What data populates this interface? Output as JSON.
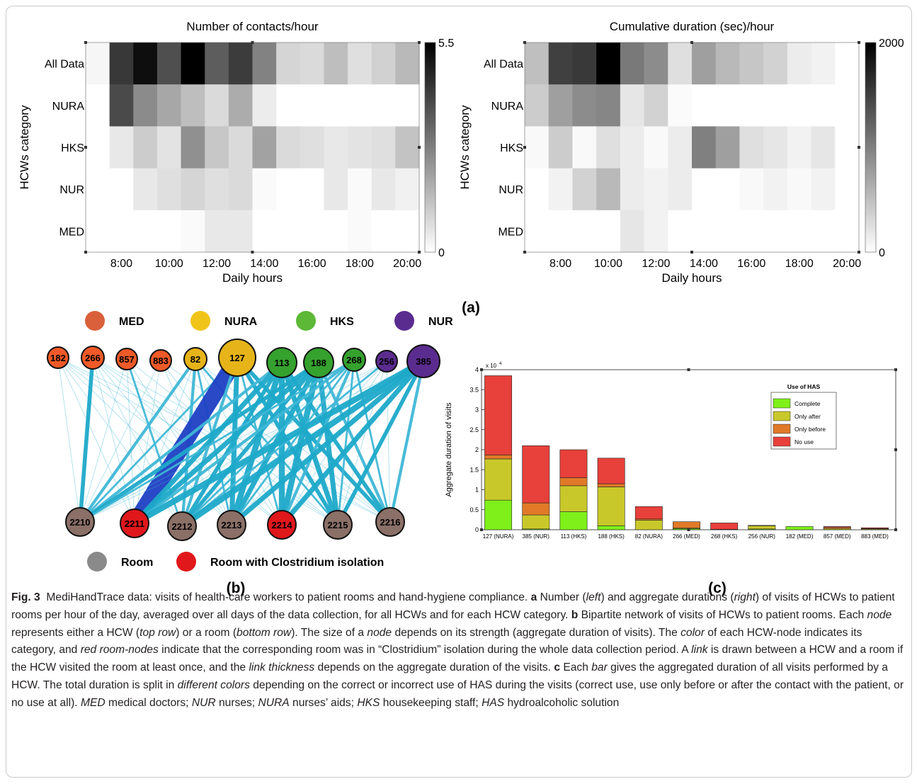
{
  "heatmaps": [
    {
      "title": "Number of contacts/hour",
      "xlabel": "Daily hours",
      "ylabel": "HCWs category",
      "rows": [
        "All Data",
        "NURA",
        "HKS",
        "NUR",
        "MED"
      ],
      "hours": [
        7,
        8,
        9,
        10,
        11,
        12,
        13,
        14,
        15,
        16,
        17,
        18,
        19,
        20
      ],
      "xticks": [
        "8:00",
        "10:00",
        "12:00",
        "14:00",
        "16:00",
        "18:00",
        "20:00"
      ],
      "colorbar": {
        "min": 0,
        "max": 5.5,
        "min_label": "0",
        "max_label": "5.5"
      },
      "values": [
        [
          0.2,
          4.3,
          5.2,
          3.8,
          5.5,
          3.5,
          4.2,
          2.7,
          0.9,
          0.8,
          1.4,
          0.7,
          1.0,
          1.5
        ],
        [
          0.0,
          3.9,
          2.5,
          1.9,
          1.4,
          0.8,
          1.8,
          0.4,
          0.0,
          0.0,
          0.0,
          0.0,
          0.0,
          0.0
        ],
        [
          0.0,
          0.5,
          1.1,
          0.6,
          2.4,
          1.2,
          0.8,
          2.0,
          0.8,
          0.7,
          0.5,
          0.6,
          0.7,
          1.3
        ],
        [
          0.0,
          0.0,
          0.5,
          0.7,
          0.9,
          0.7,
          0.8,
          0.1,
          0.0,
          0.0,
          0.5,
          0.1,
          0.5,
          0.3
        ],
        [
          0.0,
          0.0,
          0.0,
          0.0,
          0.1,
          0.5,
          0.5,
          0.0,
          0.0,
          0.0,
          0.0,
          0.1,
          0.0,
          0.0
        ]
      ]
    },
    {
      "title": "Cumulative duration (sec)/hour",
      "xlabel": "Daily hours",
      "ylabel": "HCWs category",
      "rows": [
        "All Data",
        "NURA",
        "HKS",
        "NUR",
        "MED"
      ],
      "hours": [
        7,
        8,
        9,
        10,
        11,
        12,
        13,
        14,
        15,
        16,
        17,
        18,
        19,
        20
      ],
      "xticks": [
        "8:00",
        "10:00",
        "12:00",
        "14:00",
        "16:00",
        "18:00",
        "20:00"
      ],
      "colorbar": {
        "min": 0,
        "max": 2000,
        "min_label": "0",
        "max_label": "2000"
      },
      "values": [
        [
          500,
          1500,
          1550,
          2000,
          1050,
          900,
          250,
          750,
          550,
          450,
          350,
          150,
          100,
          0
        ],
        [
          400,
          750,
          900,
          950,
          200,
          350,
          30,
          0,
          0,
          0,
          0,
          0,
          0,
          0
        ],
        [
          50,
          400,
          50,
          250,
          150,
          50,
          150,
          1000,
          750,
          250,
          200,
          100,
          200,
          0
        ],
        [
          0,
          100,
          350,
          550,
          150,
          100,
          150,
          0,
          0,
          50,
          100,
          50,
          100,
          0
        ],
        [
          0,
          0,
          0,
          0,
          200,
          100,
          0,
          0,
          0,
          0,
          0,
          0,
          0,
          0
        ]
      ]
    }
  ],
  "panel_labels": {
    "a": "(a)",
    "b": "(b)",
    "c": "(c)"
  },
  "network": {
    "legend_top": [
      {
        "label": "MED",
        "color": "#d9603b"
      },
      {
        "label": "NURA",
        "color": "#f0c419"
      },
      {
        "label": "HKS",
        "color": "#5cb836"
      },
      {
        "label": "NUR",
        "color": "#5b2c8f"
      }
    ],
    "legend_bottom": [
      {
        "label": "Room",
        "color": "#8a8a8a"
      },
      {
        "label": "Room with Clostridium isolation",
        "color": "#e0171b"
      }
    ],
    "hcw_nodes": [
      {
        "id": "182",
        "color": "#f05a28",
        "r": 15
      },
      {
        "id": "266",
        "color": "#f05a28",
        "r": 16
      },
      {
        "id": "857",
        "color": "#f05a28",
        "r": 15
      },
      {
        "id": "883",
        "color": "#f05a28",
        "r": 15
      },
      {
        "id": "82",
        "color": "#e6b419",
        "r": 16
      },
      {
        "id": "127",
        "color": "#e6b419",
        "r": 26
      },
      {
        "id": "113",
        "color": "#35a12e",
        "r": 21
      },
      {
        "id": "188",
        "color": "#35a12e",
        "r": 21
      },
      {
        "id": "268",
        "color": "#35a12e",
        "r": 16
      },
      {
        "id": "256",
        "color": "#5b2c8f",
        "r": 15
      },
      {
        "id": "385",
        "color": "#5b2c8f",
        "r": 23
      }
    ],
    "room_nodes": [
      {
        "id": "2210",
        "color": "#8b7068"
      },
      {
        "id": "2211",
        "color": "#e0171b"
      },
      {
        "id": "2212",
        "color": "#8b7068"
      },
      {
        "id": "2213",
        "color": "#8b7068"
      },
      {
        "id": "2214",
        "color": "#e0171b"
      },
      {
        "id": "2215",
        "color": "#8b7068"
      },
      {
        "id": "2216",
        "color": "#8b7068"
      }
    ],
    "links": [
      [
        "182",
        "2210",
        1
      ],
      [
        "182",
        "2211",
        1
      ],
      [
        "182",
        "2212",
        1
      ],
      [
        "182",
        "2213",
        1
      ],
      [
        "182",
        "2214",
        1
      ],
      [
        "182",
        "2215",
        1
      ],
      [
        "182",
        "2216",
        1
      ],
      [
        "266",
        "2210",
        4
      ],
      [
        "266",
        "2211",
        1
      ],
      [
        "266",
        "2212",
        1
      ],
      [
        "266",
        "2213",
        1
      ],
      [
        "266",
        "2214",
        1
      ],
      [
        "266",
        "2215",
        1
      ],
      [
        "266",
        "2216",
        1
      ],
      [
        "857",
        "2210",
        1
      ],
      [
        "857",
        "2211",
        1
      ],
      [
        "857",
        "2212",
        2
      ],
      [
        "857",
        "2213",
        1
      ],
      [
        "857",
        "2215",
        1
      ],
      [
        "883",
        "2210",
        1
      ],
      [
        "883",
        "2211",
        1
      ],
      [
        "883",
        "2213",
        1
      ],
      [
        "883",
        "2214",
        1
      ],
      [
        "883",
        "2216",
        1
      ],
      [
        "82",
        "2210",
        3
      ],
      [
        "82",
        "2211",
        1
      ],
      [
        "82",
        "2212",
        3
      ],
      [
        "82",
        "2213",
        2
      ],
      [
        "82",
        "2214",
        1
      ],
      [
        "82",
        "2215",
        2
      ],
      [
        "82",
        "2216",
        1
      ],
      [
        "127",
        "2210",
        2
      ],
      [
        "127",
        "2211",
        16
      ],
      [
        "127",
        "2212",
        3
      ],
      [
        "127",
        "2213",
        5
      ],
      [
        "127",
        "2214",
        2
      ],
      [
        "127",
        "2215",
        4
      ],
      [
        "127",
        "2216",
        4
      ],
      [
        "113",
        "2210",
        3
      ],
      [
        "113",
        "2211",
        5
      ],
      [
        "113",
        "2212",
        4
      ],
      [
        "113",
        "2213",
        6
      ],
      [
        "113",
        "2214",
        6
      ],
      [
        "113",
        "2215",
        5
      ],
      [
        "113",
        "2216",
        4
      ],
      [
        "188",
        "2210",
        4
      ],
      [
        "188",
        "2211",
        5
      ],
      [
        "188",
        "2212",
        4
      ],
      [
        "188",
        "2213",
        5
      ],
      [
        "188",
        "2214",
        6
      ],
      [
        "188",
        "2215",
        5
      ],
      [
        "188",
        "2216",
        3
      ],
      [
        "268",
        "2210",
        2
      ],
      [
        "268",
        "2211",
        3
      ],
      [
        "268",
        "2212",
        2
      ],
      [
        "268",
        "2213",
        2
      ],
      [
        "268",
        "2214",
        3
      ],
      [
        "268",
        "2215",
        2
      ],
      [
        "268",
        "2216",
        2
      ],
      [
        "256",
        "2210",
        1
      ],
      [
        "256",
        "2211",
        1
      ],
      [
        "256",
        "2212",
        2
      ],
      [
        "256",
        "2213",
        1
      ],
      [
        "256",
        "2214",
        1
      ],
      [
        "256",
        "2215",
        1
      ],
      [
        "256",
        "2216",
        1
      ],
      [
        "385",
        "2210",
        1
      ],
      [
        "385",
        "2211",
        6
      ],
      [
        "385",
        "2212",
        6
      ],
      [
        "385",
        "2213",
        5
      ],
      [
        "385",
        "2214",
        5
      ],
      [
        "385",
        "2215",
        4
      ],
      [
        "385",
        "2216",
        3
      ]
    ]
  },
  "chart_data": {
    "type": "bar",
    "stacked": true,
    "categories": [
      "127 (NURA)",
      "385 (NUR)",
      "113 (HKS)",
      "188 (HKS)",
      "82 (NURA)",
      "266 (MED)",
      "268 (HKS)",
      "256 (NUR)",
      "182 (MED)",
      "857 (MED)",
      "883 (MED)"
    ],
    "series": [
      {
        "name": "Complete",
        "color": "#7ff01a",
        "values": [
          7400,
          200,
          4500,
          1000,
          0,
          300,
          0,
          200,
          800,
          0,
          0
        ]
      },
      {
        "name": "Only after",
        "color": "#c9c82a",
        "values": [
          10300,
          3500,
          6500,
          9700,
          2400,
          100,
          0,
          800,
          0,
          300,
          200
        ]
      },
      {
        "name": "Only before",
        "color": "#e07a28",
        "values": [
          1000,
          3000,
          2000,
          800,
          300,
          1600,
          100,
          0,
          0,
          300,
          100
        ]
      },
      {
        "name": "No use",
        "color": "#e8403a",
        "values": [
          19800,
          14300,
          7000,
          6400,
          3100,
          0,
          1600,
          100,
          0,
          200,
          200
        ]
      }
    ],
    "ylabel": "Aggregate duration of visits",
    "multiplier_label": "x 10",
    "multiplier_exp": "4",
    "ylim": [
      0,
      40000
    ],
    "yticks": [
      {
        "value": 0,
        "label": "0"
      },
      {
        "value": 5000,
        "label": "0.5"
      },
      {
        "value": 10000,
        "label": "1"
      },
      {
        "value": 15000,
        "label": "1.5"
      },
      {
        "value": 20000,
        "label": "2"
      },
      {
        "value": 25000,
        "label": "2.5"
      },
      {
        "value": 30000,
        "label": "3"
      },
      {
        "value": 35000,
        "label": "3.5"
      },
      {
        "value": 40000,
        "label": "4"
      }
    ],
    "legend_title": "Use of HAS",
    "legend_order": [
      "Complete",
      "Only after",
      "Only before",
      "No use"
    ]
  },
  "caption": {
    "fig_label": "Fig. 3",
    "text": "MediHandTrace data: visits of health-care workers to patient rooms and hand-hygiene compliance.",
    "a_label": "a",
    "a_text_1": "Number (",
    "a_left": "left",
    "a_text_2": ") and aggregate durations (",
    "a_right": "right",
    "a_text_3": ") of visits of HCWs to patient rooms per hour of the day, averaged over all days of the data collection, for all HCWs and for each HCW category.",
    "b_label": "b",
    "b_text_1": "Bipartite network of visits of HCWs to patient rooms. Each",
    "b_node": "node",
    "b_text_2": "represents either a HCW (",
    "b_top": "top row",
    "b_text_3": ") or a room (",
    "b_bottom": "bottom row",
    "b_text_4": "). The size of a",
    "b_node2": "node",
    "b_text_5": "depends on its strength (aggregate duration of visits). The",
    "b_color": "color",
    "b_text_6": "of each HCW-node indicates its category, and",
    "b_red": "red room-nodes",
    "b_text_7": "indicate that the corresponding room was in “Clostridium” isolation during the whole data collection period. A",
    "b_link": "link",
    "b_text_8": "is drawn between a HCW and a room if the HCW visited the room at least once, and the",
    "b_thick": "link thickness",
    "b_text_9": "depends on the aggregate duration of the visits.",
    "c_label": "c",
    "c_text_1": "Each",
    "c_bar": "bar",
    "c_text_2": "gives the aggregated duration of all visits performed by a HCW. The total duration is split in",
    "c_colors": "different colors",
    "c_text_3": "depending on the correct or incorrect use of HAS during the visits (correct use, use only before or after the contact with the patient, or no use at all).",
    "med": "MED",
    "med_t": "medical doctors;",
    "nur": "NUR",
    "nur_t": "nurses;",
    "nura": "NURA",
    "nura_t": "nurses’ aids;",
    "hks": "HKS",
    "hks_t": "housekeeping staff;",
    "has": "HAS",
    "has_t": "hydroalcoholic solution"
  }
}
